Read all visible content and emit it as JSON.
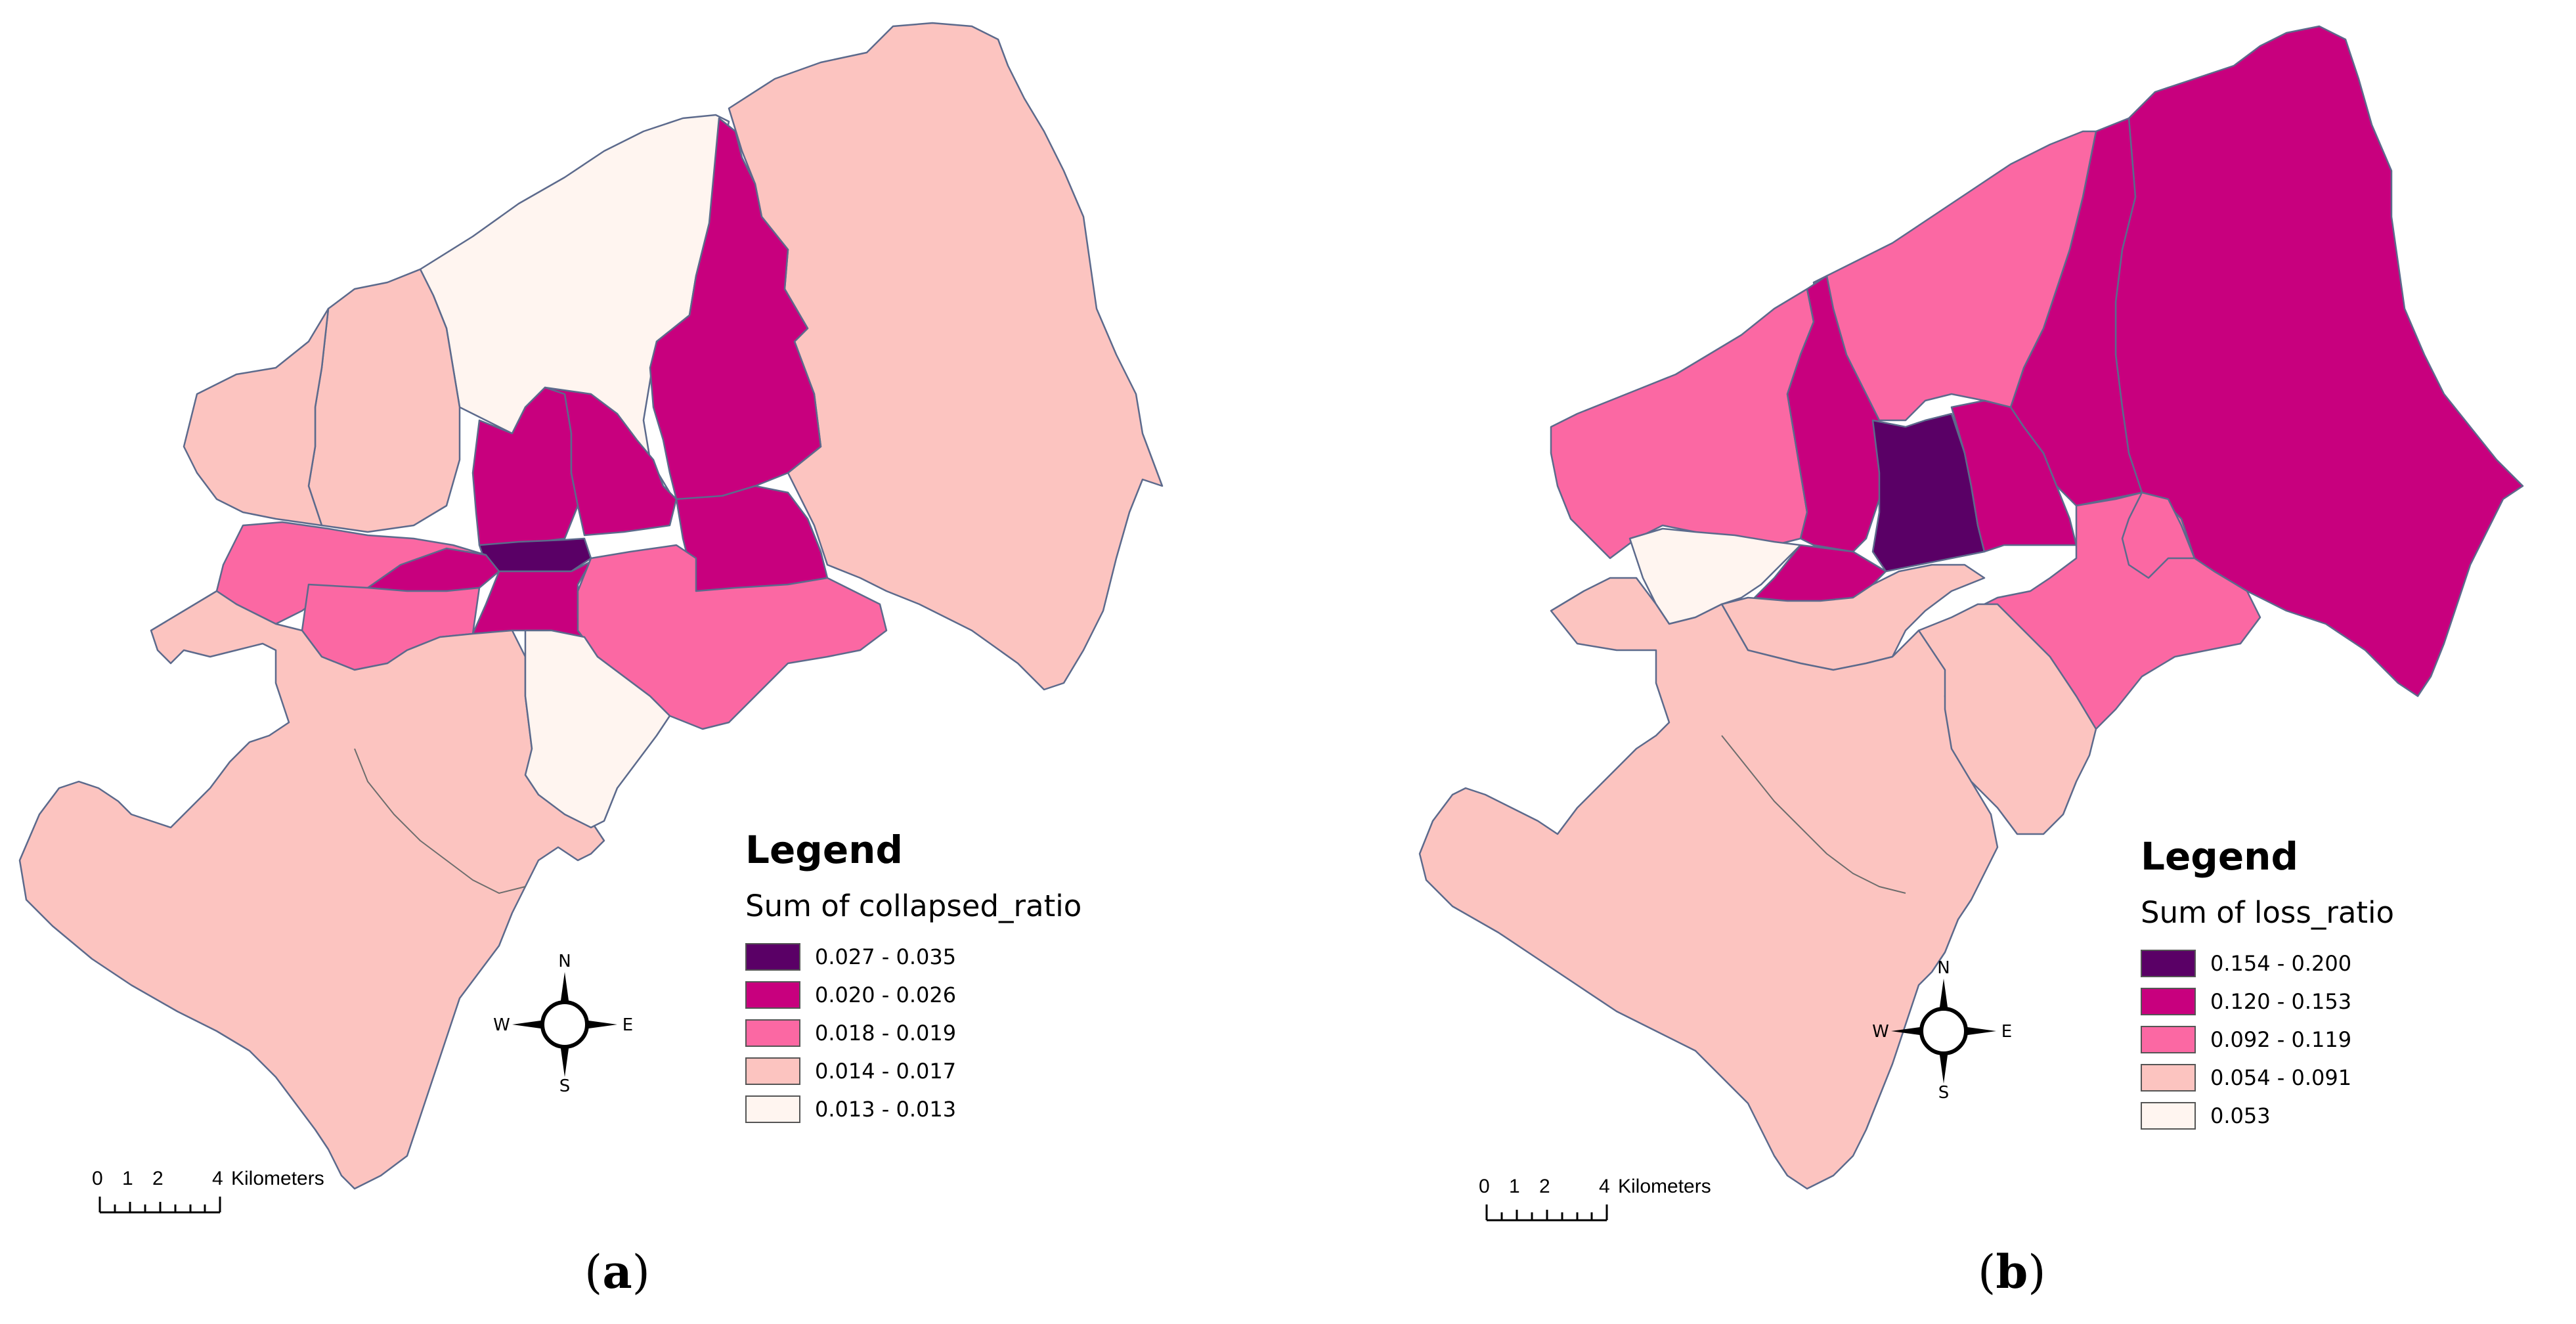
{
  "colors": {
    "class1": "#5a0066",
    "class2": "#c8007e",
    "class3": "#fb68a3",
    "class4": "#fcc4c0",
    "class5": "#fff5f0",
    "boundary": "#5c6a8c"
  },
  "compass": {
    "n": "N",
    "s": "S",
    "e": "E",
    "w": "W"
  },
  "panels": [
    {
      "caption": "a",
      "legend": {
        "title": "Legend",
        "subtitle": "Sum of collapsed_ratio",
        "classes": [
          {
            "label": "0.027 - 0.035",
            "color": "#5a0066"
          },
          {
            "label": "0.020 - 0.026",
            "color": "#c8007e"
          },
          {
            "label": "0.018 - 0.019",
            "color": "#fb68a3"
          },
          {
            "label": "0.014 - 0.017",
            "color": "#fcc4c0"
          },
          {
            "label": "0.013 - 0.013",
            "color": "#fff5f0"
          }
        ]
      },
      "scale": {
        "ticks": [
          "0",
          "1",
          "2",
          "4"
        ],
        "unit": "Kilometers"
      }
    },
    {
      "caption": "b",
      "legend": {
        "title": "Legend",
        "subtitle": "Sum of loss_ratio",
        "classes": [
          {
            "label": "0.154 - 0.200",
            "color": "#5a0066"
          },
          {
            "label": "0.120 - 0.153",
            "color": "#c8007e"
          },
          {
            "label": "0.092 - 0.119",
            "color": "#fb68a3"
          },
          {
            "label": "0.054 - 0.091",
            "color": "#fcc4c0"
          },
          {
            "label": "0.053",
            "color": "#fff5f0"
          }
        ]
      },
      "scale": {
        "ticks": [
          "0",
          "1",
          "2",
          "4"
        ],
        "unit": "Kilometers"
      }
    }
  ]
}
